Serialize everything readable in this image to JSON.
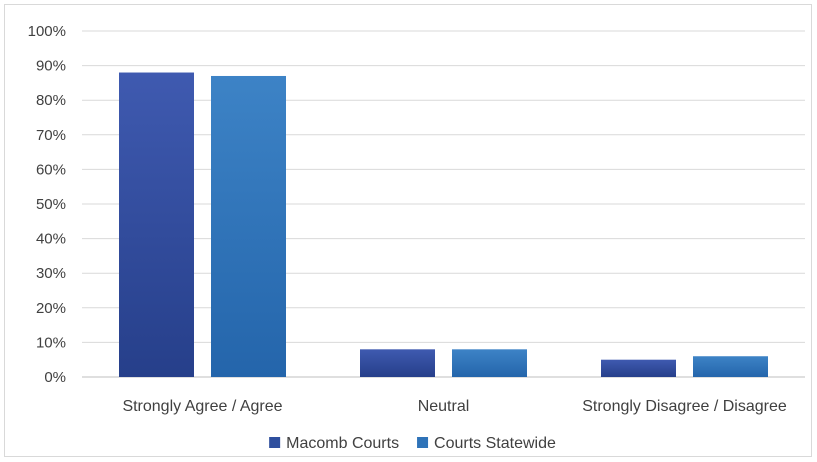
{
  "chart_data": {
    "type": "bar",
    "categories": [
      "Strongly Agree / Agree",
      "Neutral",
      "Strongly Disagree / Disagree"
    ],
    "series": [
      {
        "name": "Macomb Courts",
        "values": [
          88,
          8,
          5
        ],
        "color": "#2f4f9e"
      },
      {
        "name": "Courts Statewide",
        "values": [
          87,
          8,
          6
        ],
        "color": "#2f73b8"
      }
    ],
    "y_ticks": [
      "0%",
      "10%",
      "20%",
      "30%",
      "40%",
      "50%",
      "60%",
      "70%",
      "80%",
      "90%",
      "100%"
    ],
    "ylim": [
      0,
      100
    ],
    "grid": true,
    "legend_position": "bottom"
  }
}
